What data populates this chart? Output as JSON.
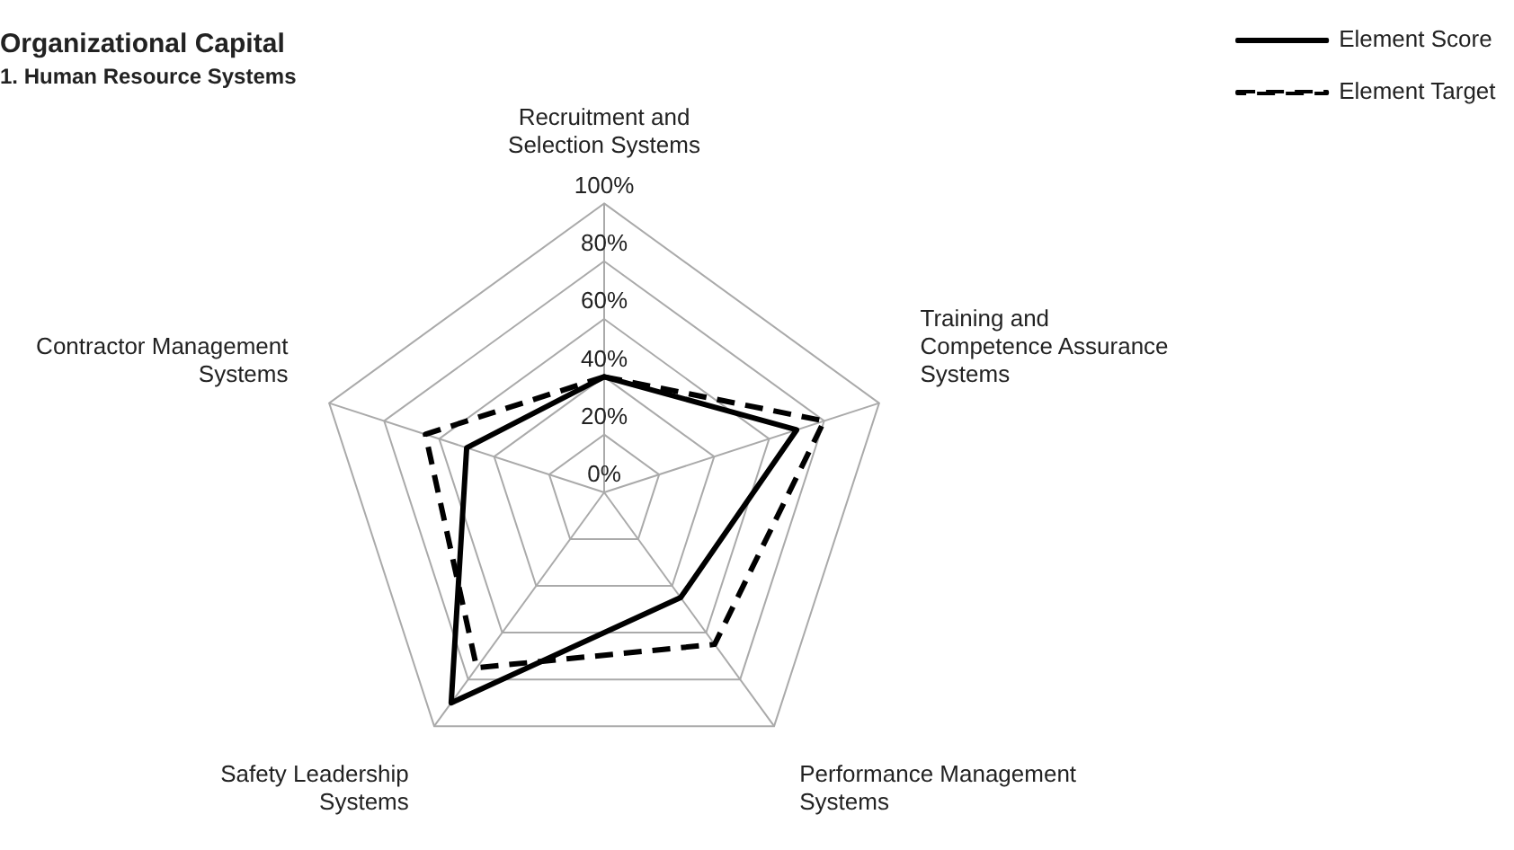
{
  "chart_data": {
    "type": "radar",
    "title": "Organizational Capital",
    "subtitle": "1. Human Resource Systems",
    "categories": [
      "Recruitment and Selection Systems",
      "Training and Competence Assurance Systems",
      "Performance Management Systems",
      "Safety Leadership Systems",
      "Contractor Management Systems"
    ],
    "series": [
      {
        "name": "Element Score",
        "color": "#000000",
        "line_style": "solid",
        "values": [
          40,
          70,
          45,
          90,
          50
        ]
      },
      {
        "name": "Element Target",
        "color": "#000000",
        "line_style": "dashed",
        "values": [
          40,
          80,
          65,
          75,
          65
        ]
      }
    ],
    "ylim": [
      0,
      100
    ],
    "yticks": [
      {
        "value": 0,
        "label": "0%"
      },
      {
        "value": 20,
        "label": "20%"
      },
      {
        "value": 40,
        "label": "40%"
      },
      {
        "value": 60,
        "label": "60%"
      },
      {
        "value": 80,
        "label": "80%"
      },
      {
        "value": 100,
        "label": "100%"
      }
    ],
    "grid": true,
    "legend": "top right",
    "marker": "none"
  }
}
